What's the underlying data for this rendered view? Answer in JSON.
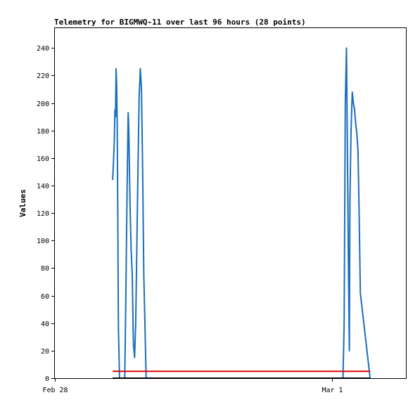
{
  "chart_data": {
    "type": "line",
    "title": "Telemetry for BIGMWQ-11 over last 96 hours (28 points)",
    "xlabel": "",
    "ylabel": "Values",
    "ylim": [
      0,
      255
    ],
    "y_ticks": [
      0,
      20,
      40,
      60,
      80,
      100,
      120,
      140,
      160,
      180,
      200,
      220,
      240
    ],
    "x_ticks": [
      {
        "label": "Feb 28",
        "x": 0
      },
      {
        "label": "Mar 1",
        "x": 24
      }
    ],
    "xlim": [
      0,
      30.4
    ],
    "grid": false,
    "colors": {
      "series": "#1a6ebd",
      "threshold": "#e00000",
      "zero": "#000000",
      "frame": "#000000"
    },
    "series": [
      {
        "color": "#1a6ebd",
        "segments": [
          [
            [
              5.0,
              144
            ],
            [
              5.05,
              152
            ],
            [
              5.15,
              173
            ],
            [
              5.2,
              195
            ],
            [
              5.25,
              190
            ],
            [
              5.3,
              225
            ],
            [
              5.35,
              213
            ],
            [
              5.4,
              185
            ],
            [
              5.45,
              112
            ],
            [
              5.5,
              37
            ],
            [
              5.6,
              0
            ]
          ],
          [
            [
              6.05,
              0
            ],
            [
              6.15,
              60
            ],
            [
              6.25,
              135
            ],
            [
              6.35,
              193
            ],
            [
              6.4,
              180
            ],
            [
              6.5,
              130
            ],
            [
              6.6,
              95
            ],
            [
              6.7,
              75
            ],
            [
              6.8,
              25
            ],
            [
              6.9,
              15
            ],
            [
              7.0,
              40
            ],
            [
              7.1,
              95
            ],
            [
              7.2,
              155
            ],
            [
              7.3,
              205
            ],
            [
              7.4,
              225
            ],
            [
              7.5,
              210
            ],
            [
              7.6,
              150
            ],
            [
              7.7,
              75
            ],
            [
              7.8,
              40
            ],
            [
              7.9,
              0
            ]
          ],
          [
            [
              24.95,
              0
            ],
            [
              25.05,
              40
            ],
            [
              25.15,
              200
            ],
            [
              25.25,
              240
            ],
            [
              25.35,
              150
            ],
            [
              25.45,
              60
            ],
            [
              25.5,
              20
            ],
            [
              25.55,
              130
            ],
            [
              25.65,
              180
            ],
            [
              25.75,
              208
            ],
            [
              25.85,
              200
            ],
            [
              25.95,
              195
            ],
            [
              26.05,
              185
            ],
            [
              26.15,
              178
            ],
            [
              26.25,
              165
            ],
            [
              26.35,
              120
            ],
            [
              26.45,
              62
            ],
            [
              27.3,
              0
            ]
          ]
        ]
      },
      {
        "color": "#e00000",
        "segments": [
          [
            [
              5.0,
              5
            ],
            [
              27.3,
              5
            ]
          ]
        ]
      },
      {
        "color": "#000000",
        "segments": [
          [
            [
              5.0,
              0
            ],
            [
              27.3,
              0
            ]
          ]
        ]
      }
    ]
  }
}
